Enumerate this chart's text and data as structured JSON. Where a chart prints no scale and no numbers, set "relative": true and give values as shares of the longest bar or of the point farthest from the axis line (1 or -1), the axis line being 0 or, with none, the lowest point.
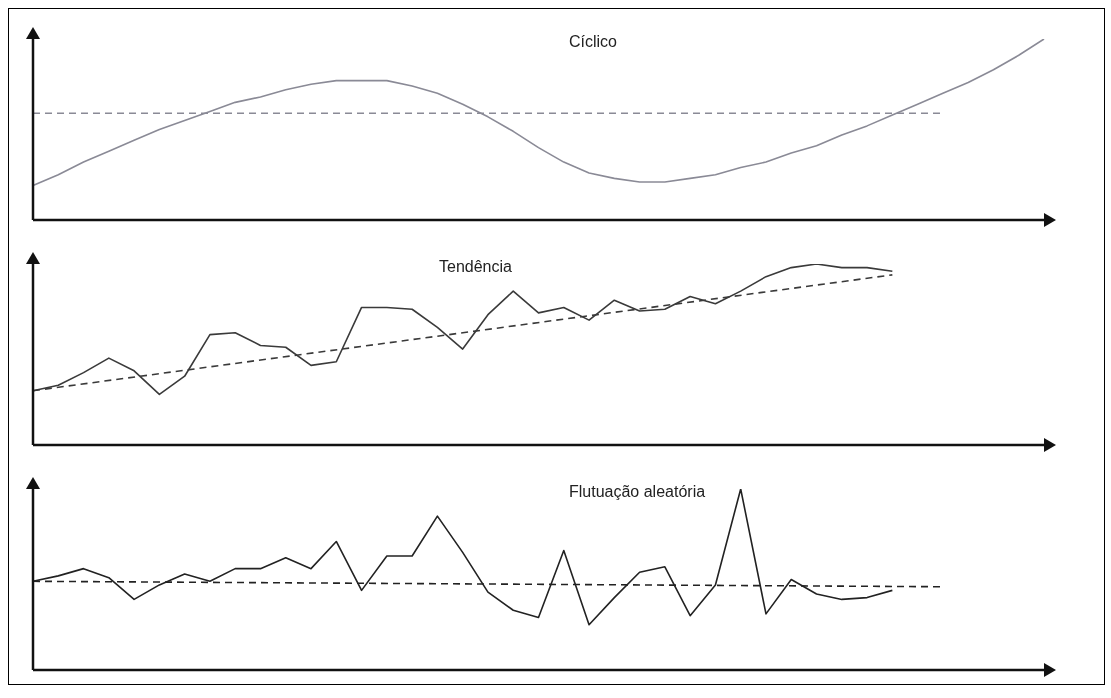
{
  "chart_data": [
    {
      "type": "line",
      "title": "Cíclico",
      "relative": true,
      "categories": [
        null,
        null,
        null,
        null,
        null,
        null,
        null,
        null,
        null,
        null,
        null,
        null,
        null,
        null,
        null,
        null,
        null,
        null,
        null,
        null,
        null,
        null,
        null,
        null,
        null,
        null,
        null,
        null,
        null,
        null,
        null,
        null,
        null,
        null,
        null,
        null,
        null,
        null,
        null,
        null,
        null
      ],
      "series": [
        {
          "color": "#8a8a96",
          "line_style": "solid",
          "values": [
            0.19,
            0.25,
            0.32,
            0.38,
            0.44,
            0.5,
            0.55,
            0.6,
            0.65,
            0.68,
            0.72,
            0.75,
            0.77,
            0.77,
            0.77,
            0.74,
            0.7,
            0.64,
            0.57,
            0.49,
            0.4,
            0.32,
            0.26,
            0.23,
            0.21,
            0.21,
            0.23,
            0.25,
            0.29,
            0.32,
            0.37,
            0.41,
            0.47,
            0.52,
            0.58,
            0.64,
            0.7,
            0.76,
            0.83,
            0.91,
            1
          ]
        },
        {
          "color": "#8a8a96",
          "line_style": "dashed",
          "values": [
            0.59,
            null,
            null,
            null,
            null,
            null,
            null,
            null,
            null,
            null,
            null,
            null,
            null,
            null,
            null,
            null,
            null,
            null,
            null,
            null,
            null,
            null,
            null,
            null,
            null,
            null,
            null,
            null,
            null,
            null,
            null,
            null,
            null,
            null,
            null,
            null,
            0.59,
            null,
            null,
            null,
            null
          ]
        }
      ]
    },
    {
      "type": "line",
      "title": "Tendência",
      "relative": true,
      "categories": [
        null,
        null,
        null,
        null,
        null,
        null,
        null,
        null,
        null,
        null,
        null,
        null,
        null,
        null,
        null,
        null,
        null,
        null,
        null,
        null,
        null,
        null,
        null,
        null,
        null,
        null,
        null,
        null,
        null,
        null,
        null,
        null,
        null,
        null,
        null,
        null,
        null,
        null,
        null,
        null,
        null
      ],
      "series": [
        {
          "color": "#3a3a3a",
          "line_style": "solid",
          "values": [
            0.3,
            0.33,
            0.4,
            0.48,
            0.41,
            0.28,
            0.38,
            0.61,
            0.62,
            0.55,
            0.54,
            0.44,
            0.46,
            0.76,
            0.76,
            0.75,
            0.65,
            0.53,
            0.72,
            0.85,
            0.73,
            0.76,
            0.69,
            0.8,
            0.74,
            0.75,
            0.82,
            0.78,
            0.85,
            0.93,
            0.98,
            1.0,
            0.98,
            0.98,
            0.96,
            null,
            null,
            null,
            null,
            null,
            null
          ]
        },
        {
          "color": "#3a3a3a",
          "line_style": "dashed",
          "values": [
            0.3,
            null,
            null,
            null,
            null,
            null,
            null,
            null,
            null,
            null,
            null,
            null,
            null,
            null,
            null,
            null,
            null,
            null,
            null,
            null,
            null,
            null,
            null,
            null,
            null,
            null,
            null,
            null,
            null,
            null,
            null,
            null,
            null,
            null,
            0.94,
            null,
            null,
            null,
            null,
            null,
            null
          ]
        }
      ]
    },
    {
      "type": "line",
      "title": "Flutuação aleatória",
      "relative": true,
      "categories": [
        null,
        null,
        null,
        null,
        null,
        null,
        null,
        null,
        null,
        null,
        null,
        null,
        null,
        null,
        null,
        null,
        null,
        null,
        null,
        null,
        null,
        null,
        null,
        null,
        null,
        null,
        null,
        null,
        null,
        null,
        null,
        null,
        null,
        null,
        null,
        null,
        null,
        null,
        null,
        null,
        null
      ],
      "series": [
        {
          "color": "#222222",
          "line_style": "solid",
          "values": [
            0.49,
            0.52,
            0.56,
            0.51,
            0.39,
            0.47,
            0.53,
            0.49,
            0.56,
            0.56,
            0.62,
            0.56,
            0.71,
            0.44,
            0.63,
            0.63,
            0.85,
            0.65,
            0.43,
            0.33,
            0.29,
            0.66,
            0.25,
            0.4,
            0.54,
            0.57,
            0.3,
            0.47,
            1.0,
            0.31,
            0.5,
            0.42,
            0.39,
            0.4,
            0.44,
            null,
            null,
            null,
            null,
            null,
            null
          ]
        },
        {
          "color": "#222222",
          "line_style": "dashed",
          "values": [
            0.49,
            null,
            null,
            null,
            null,
            null,
            null,
            null,
            null,
            null,
            null,
            null,
            null,
            null,
            null,
            null,
            null,
            null,
            null,
            null,
            null,
            null,
            null,
            null,
            null,
            null,
            null,
            null,
            null,
            null,
            null,
            null,
            null,
            null,
            null,
            null,
            0.46,
            null,
            null,
            null,
            null
          ]
        }
      ]
    }
  ]
}
